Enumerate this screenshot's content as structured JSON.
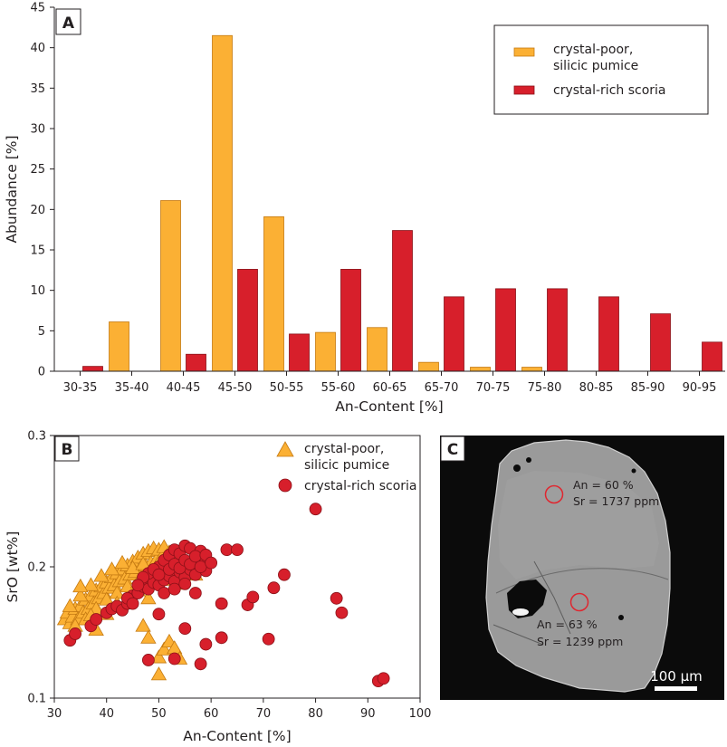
{
  "colors": {
    "pumice": "#fbb034",
    "pumice_stroke": "#c57a12",
    "scoria": "#d71f2b",
    "scoria_stroke": "#8a1118",
    "axis": "#231f20",
    "image_bg": "#0b0b0b",
    "crystal": "#9a9a9a",
    "circle": "#e0262f"
  },
  "chart_data": [
    {
      "panel": "A",
      "type": "bar",
      "xlabel": "An-Content [%]",
      "ylabel": "Abundance [%]",
      "ylim": [
        0,
        45
      ],
      "yticks": [
        "0",
        "5",
        "10",
        "15",
        "20",
        "25",
        "30",
        "35",
        "40",
        "45"
      ],
      "categories": [
        "30-35",
        "35-40",
        "40-45",
        "45-50",
        "50-55",
        "55-60",
        "60-65",
        "65-70",
        "70-75",
        "75-80",
        "80-85",
        "85-90",
        "90-95"
      ],
      "series": [
        {
          "name": "crystal-poor, silicic pumice",
          "name_lines": [
            "crystal-poor,",
            "silicic pumice"
          ],
          "color_key": "pumice",
          "values": [
            0,
            6.1,
            21.1,
            41.5,
            19.1,
            4.8,
            5.4,
            1.1,
            0.5,
            0.5,
            0,
            0,
            0
          ]
        },
        {
          "name": "crystal-rich scoria",
          "name_lines": [
            "crystal-rich scoria"
          ],
          "color_key": "scoria",
          "values": [
            0.6,
            0,
            2.1,
            12.6,
            4.6,
            12.6,
            17.4,
            9.2,
            10.2,
            10.2,
            9.2,
            7.1,
            3.6
          ]
        }
      ],
      "legend": "top-right"
    },
    {
      "panel": "B",
      "type": "scatter",
      "xlabel": "An-Content [%]",
      "ylabel": "SrO [wt%]",
      "xlim": [
        30,
        100
      ],
      "ylim": [
        0.1,
        0.3
      ],
      "xticks": [
        "30",
        "40",
        "50",
        "60",
        "70",
        "80",
        "90",
        "100"
      ],
      "yticks": [
        "0.1",
        "0.2",
        "0.3"
      ],
      "legend": "top-right",
      "series": [
        {
          "name": "crystal-poor, silicic pumice",
          "name_lines": [
            "crystal-poor,",
            "silicic pumice"
          ],
          "marker": "triangle",
          "color_key": "pumice",
          "points": [
            [
              32,
              0.16
            ],
            [
              32.5,
              0.165
            ],
            [
              33,
              0.157
            ],
            [
              33.5,
              0.162
            ],
            [
              34,
              0.168
            ],
            [
              34.5,
              0.16
            ],
            [
              35,
              0.17
            ],
            [
              35.5,
              0.165
            ],
            [
              36,
              0.175
            ],
            [
              36.5,
              0.168
            ],
            [
              37,
              0.178
            ],
            [
              37.5,
              0.172
            ],
            [
              38,
              0.182
            ],
            [
              38.5,
              0.176
            ],
            [
              39,
              0.185
            ],
            [
              39.5,
              0.18
            ],
            [
              40,
              0.188
            ],
            [
              40.5,
              0.184
            ],
            [
              41,
              0.192
            ],
            [
              41.5,
              0.186
            ],
            [
              42,
              0.195
            ],
            [
              42.5,
              0.189
            ],
            [
              43,
              0.198
            ],
            [
              43.5,
              0.191
            ],
            [
              44,
              0.201
            ],
            [
              44.5,
              0.194
            ],
            [
              45,
              0.204
            ],
            [
              45.5,
              0.196
            ],
            [
              46,
              0.207
            ],
            [
              46.5,
              0.199
            ],
            [
              47,
              0.21
            ],
            [
              47.5,
              0.201
            ],
            [
              48,
              0.212
            ],
            [
              48.5,
              0.203
            ],
            [
              49,
              0.214
            ],
            [
              49.5,
              0.205
            ],
            [
              50,
              0.213
            ],
            [
              50.5,
              0.207
            ],
            [
              51,
              0.215
            ],
            [
              51.5,
              0.206
            ],
            [
              52,
              0.211
            ],
            [
              52.5,
              0.204
            ],
            [
              53,
              0.208
            ],
            [
              53.5,
              0.201
            ],
            [
              54,
              0.205
            ],
            [
              55,
              0.198
            ],
            [
              56,
              0.196
            ],
            [
              57,
              0.194
            ],
            [
              33,
              0.17
            ],
            [
              34,
              0.155
            ],
            [
              35,
              0.178
            ],
            [
              36,
              0.16
            ],
            [
              37,
              0.186
            ],
            [
              38,
              0.168
            ],
            [
              39,
              0.193
            ],
            [
              40,
              0.175
            ],
            [
              41,
              0.198
            ],
            [
              42,
              0.18
            ],
            [
              43,
              0.203
            ],
            [
              44,
              0.185
            ],
            [
              45,
              0.199
            ],
            [
              46,
              0.188
            ],
            [
              47,
              0.202
            ],
            [
              48,
              0.189
            ],
            [
              49,
              0.197
            ],
            [
              50,
              0.192
            ],
            [
              51,
              0.199
            ],
            [
              52,
              0.19
            ],
            [
              53,
              0.196
            ],
            [
              54,
              0.187
            ],
            [
              35,
              0.185
            ],
            [
              37,
              0.163
            ],
            [
              38,
              0.152
            ],
            [
              40,
              0.164
            ],
            [
              42,
              0.172
            ],
            [
              44,
              0.174
            ],
            [
              46,
              0.182
            ],
            [
              48,
              0.176
            ],
            [
              47,
              0.155
            ],
            [
              48,
              0.146
            ],
            [
              50,
              0.131
            ],
            [
              51,
              0.137
            ],
            [
              52,
              0.143
            ],
            [
              53,
              0.138
            ],
            [
              54,
              0.13
            ],
            [
              50,
              0.118
            ]
          ]
        },
        {
          "name": "crystal-rich scoria",
          "name_lines": [
            "crystal-rich scoria"
          ],
          "marker": "circle",
          "color_key": "scoria",
          "points": [
            [
              33,
              0.144
            ],
            [
              34,
              0.149
            ],
            [
              37,
              0.155
            ],
            [
              38,
              0.16
            ],
            [
              40,
              0.165
            ],
            [
              41,
              0.168
            ],
            [
              42,
              0.17
            ],
            [
              43,
              0.167
            ],
            [
              44,
              0.172
            ],
            [
              45,
              0.178
            ],
            [
              46,
              0.18
            ],
            [
              47,
              0.185
            ],
            [
              48,
              0.183
            ],
            [
              49,
              0.188
            ],
            [
              50,
              0.186
            ],
            [
              51,
              0.19
            ],
            [
              52,
              0.193
            ],
            [
              53,
              0.189
            ],
            [
              54,
              0.196
            ],
            [
              55,
              0.192
            ],
            [
              56,
              0.198
            ],
            [
              57,
              0.194
            ],
            [
              58,
              0.201
            ],
            [
              59,
              0.197
            ],
            [
              48,
              0.195
            ],
            [
              50,
              0.2
            ],
            [
              51,
              0.205
            ],
            [
              52,
              0.209
            ],
            [
              53,
              0.213
            ],
            [
              54,
              0.21
            ],
            [
              55,
              0.216
            ],
            [
              56,
              0.214
            ],
            [
              57,
              0.206
            ],
            [
              58,
              0.212
            ],
            [
              59,
              0.205
            ],
            [
              47,
              0.192
            ],
            [
              49,
              0.198
            ],
            [
              50,
              0.194
            ],
            [
              52,
              0.198
            ],
            [
              53,
              0.202
            ],
            [
              54,
              0.199
            ],
            [
              55,
              0.205
            ],
            [
              56,
              0.202
            ],
            [
              57,
              0.208
            ],
            [
              58,
              0.2
            ],
            [
              59,
              0.209
            ],
            [
              60,
              0.203
            ],
            [
              44,
              0.176
            ],
            [
              45,
              0.172
            ],
            [
              46,
              0.186
            ],
            [
              51,
              0.18
            ],
            [
              53,
              0.183
            ],
            [
              55,
              0.187
            ],
            [
              57,
              0.18
            ],
            [
              48,
              0.129
            ],
            [
              50,
              0.164
            ],
            [
              53,
              0.13
            ],
            [
              55,
              0.153
            ],
            [
              58,
              0.126
            ],
            [
              59,
              0.141
            ],
            [
              62,
              0.172
            ],
            [
              62,
              0.146
            ],
            [
              63,
              0.213
            ],
            [
              65,
              0.213
            ],
            [
              67,
              0.171
            ],
            [
              68,
              0.177
            ],
            [
              71,
              0.145
            ],
            [
              72,
              0.184
            ],
            [
              74,
              0.194
            ],
            [
              80,
              0.244
            ],
            [
              84,
              0.176
            ],
            [
              85,
              0.165
            ],
            [
              92,
              0.113
            ],
            [
              93,
              0.115
            ]
          ]
        }
      ]
    }
  ],
  "panel_c": {
    "letter": "C",
    "annotation_top": [
      "An = 60 %",
      "Sr = 1737 ppm"
    ],
    "annotation_bottom": [
      "An = 63 %",
      "Sr = 1239 ppm"
    ],
    "scale_bar": "100 µm"
  }
}
